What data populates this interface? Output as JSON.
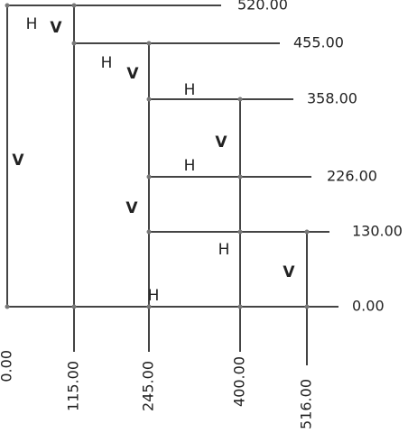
{
  "y_labels": [
    "520.00",
    "455.00",
    "358.00",
    "226.00",
    "130.00",
    "0.00"
  ],
  "x_labels": [
    "0.00",
    "115.00",
    "245.00",
    "400.00",
    "516.00"
  ],
  "markers": [
    "H",
    "V",
    "H",
    "V",
    "H",
    "V",
    "H",
    "V",
    "V",
    "H",
    "V",
    "H"
  ]
}
